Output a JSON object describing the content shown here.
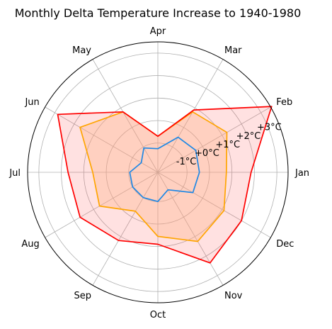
{
  "chart_data": {
    "type": "radar",
    "title": "Monthly Delta Temperature Increase to 1940-1980",
    "categories": [
      "Jan",
      "Feb",
      "Mar",
      "Apr",
      "May",
      "Jun",
      "Jul",
      "Aug",
      "Sep",
      "Oct",
      "Nov",
      "Dec"
    ],
    "radial_ticks": [
      "-1°C",
      "+0°C",
      "+1°C",
      "+2°C",
      "+3°C"
    ],
    "radial_tick_values": [
      -1,
      0,
      1,
      2,
      3
    ],
    "rlim": [
      -2.3,
      3.5
    ],
    "grid": true,
    "series": [
      {
        "color": "#1e88e5",
        "fill": false,
        "values": [
          -0.45,
          -0.35,
          -0.5,
          -1.25,
          -1.05,
          -1.45,
          -1.05,
          -1.0,
          -1.0,
          -1.0,
          -1.4,
          -0.5
        ]
      },
      {
        "color": "#ffa500",
        "fill": false,
        "values": [
          0.75,
          1.25,
          0.8,
          -0.7,
          0.8,
          1.7,
          0.6,
          0.7,
          -0.3,
          0.55,
          1.25,
          1.1
        ]
      },
      {
        "color": "#ff0000",
        "fill": true,
        "fill_color": "#ff4d4d",
        "values": [
          1.85,
          3.55,
          0.9,
          -0.7,
          0.8,
          2.85,
          1.7,
          1.7,
          1.2,
          0.9,
          2.35,
          2.0
        ]
      }
    ],
    "overlap_fill_color": "#ffb383"
  }
}
